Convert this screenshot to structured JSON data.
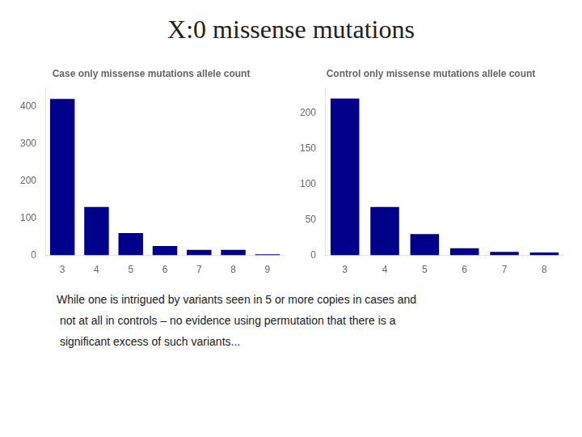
{
  "title": "X:0 missense mutations",
  "annotations": [
    "While one is intrigued by variants seen in 5 or more copies in cases and",
    " not at all in controls – no evidence using permutation that there is a",
    " significant excess of such variants..."
  ],
  "chart_data": [
    {
      "type": "bar",
      "title": "Case only missense mutations allele count",
      "categories": [
        3,
        4,
        5,
        6,
        7,
        8,
        9
      ],
      "values": [
        420,
        130,
        60,
        25,
        15,
        15,
        3
      ],
      "color": "#00008B",
      "ylim": [
        0,
        450
      ],
      "yticks": [
        0,
        100,
        200,
        300,
        400
      ],
      "grid": false
    },
    {
      "type": "bar",
      "title": "Control only missense mutations allele count",
      "categories": [
        3,
        4,
        5,
        6,
        7,
        8
      ],
      "values": [
        220,
        68,
        30,
        10,
        5,
        4
      ],
      "color": "#00008B",
      "ylim": [
        0,
        235
      ],
      "yticks": [
        0,
        50,
        100,
        150,
        200
      ],
      "grid": false
    }
  ]
}
